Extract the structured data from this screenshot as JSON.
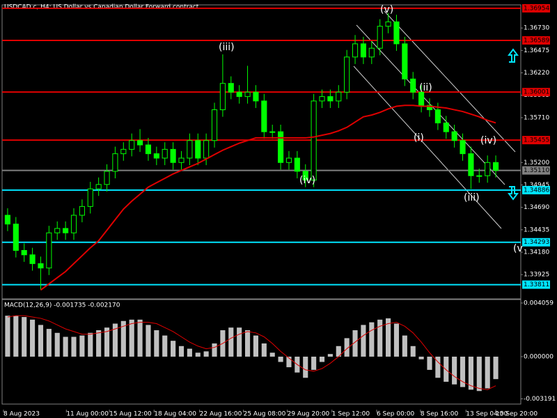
{
  "chart_data": [
    {
      "type": "candlestick",
      "title": "USDCAD.c, H4: US Dollar vs Canadian Dollar Forward contract",
      "up_color": "#00ff00",
      "down_color": "#00ff00",
      "open": [
        1.346,
        1.345,
        1.342,
        1.3415,
        1.3405,
        1.34,
        1.344,
        1.3445,
        1.344,
        1.346,
        1.347,
        1.349,
        1.3495,
        1.351,
        1.353,
        1.3535,
        1.3545,
        1.354,
        1.353,
        1.3525,
        1.3535,
        1.352,
        1.3525,
        1.3545,
        1.3525,
        1.3545,
        1.358,
        1.361,
        1.36,
        1.3595,
        1.36,
        1.359,
        1.3555,
        1.3555,
        1.352,
        1.3525,
        1.351,
        1.35,
        1.359,
        1.3595,
        1.359,
        1.36,
        1.364,
        1.3655,
        1.364,
        1.365,
        1.3675,
        1.368,
        1.3655,
        1.3615,
        1.36,
        1.3585,
        1.358,
        1.3565,
        1.3555,
        1.3545,
        1.353,
        1.3505,
        1.3505,
        1.352
      ],
      "high": [
        1.3468,
        1.3458,
        1.3428,
        1.3423,
        1.3413,
        1.3448,
        1.3453,
        1.3453,
        1.3468,
        1.3478,
        1.3498,
        1.3503,
        1.3518,
        1.3538,
        1.3543,
        1.3553,
        1.3558,
        1.3548,
        1.3538,
        1.3543,
        1.3543,
        1.3533,
        1.3553,
        1.3553,
        1.3553,
        1.3588,
        1.3643,
        1.3618,
        1.3608,
        1.363,
        1.3608,
        1.3598,
        1.3563,
        1.3563,
        1.3533,
        1.3533,
        1.3518,
        1.3598,
        1.3603,
        1.3603,
        1.3608,
        1.3648,
        1.3665,
        1.3663,
        1.3658,
        1.3683,
        1.369,
        1.3688,
        1.3663,
        1.3623,
        1.3608,
        1.3593,
        1.3588,
        1.3573,
        1.3563,
        1.3553,
        1.3538,
        1.3513,
        1.3528,
        1.3528
      ],
      "low": [
        1.3442,
        1.3412,
        1.3407,
        1.3397,
        1.3375,
        1.3392,
        1.3432,
        1.3432,
        1.3432,
        1.3452,
        1.3462,
        1.3482,
        1.3487,
        1.3502,
        1.3522,
        1.3527,
        1.3532,
        1.3522,
        1.3517,
        1.3517,
        1.3512,
        1.3512,
        1.3517,
        1.3517,
        1.3517,
        1.3537,
        1.3572,
        1.3592,
        1.3587,
        1.3587,
        1.3582,
        1.3547,
        1.3547,
        1.3512,
        1.3512,
        1.3502,
        1.3492,
        1.3492,
        1.3582,
        1.3582,
        1.3582,
        1.3592,
        1.3632,
        1.3632,
        1.3632,
        1.3642,
        1.3667,
        1.3647,
        1.3607,
        1.3592,
        1.3577,
        1.3572,
        1.3557,
        1.3547,
        1.3537,
        1.3522,
        1.349,
        1.3497,
        1.3497,
        1.3503
      ],
      "close": [
        1.345,
        1.342,
        1.3415,
        1.3405,
        1.34,
        1.344,
        1.3445,
        1.344,
        1.346,
        1.347,
        1.349,
        1.3495,
        1.351,
        1.353,
        1.3535,
        1.3545,
        1.354,
        1.353,
        1.3525,
        1.3535,
        1.352,
        1.3525,
        1.3545,
        1.3525,
        1.3545,
        1.358,
        1.361,
        1.36,
        1.3595,
        1.36,
        1.359,
        1.3555,
        1.3555,
        1.352,
        1.3525,
        1.351,
        1.35,
        1.359,
        1.3595,
        1.359,
        1.36,
        1.364,
        1.3655,
        1.364,
        1.365,
        1.3675,
        1.368,
        1.3655,
        1.3615,
        1.36,
        1.3585,
        1.358,
        1.3565,
        1.3555,
        1.3545,
        1.353,
        1.3505,
        1.3505,
        1.352,
        1.3511
      ],
      "moving_average": {
        "color": "#e00000",
        "values": [
          null,
          null,
          null,
          null,
          1.3375,
          1.3382,
          1.3389,
          1.3396,
          1.3405,
          1.3414,
          1.3423,
          1.3431,
          1.3443,
          1.3455,
          1.3467,
          1.3476,
          1.3484,
          1.3492,
          1.3497,
          1.3502,
          1.3507,
          1.3511,
          1.3515,
          1.3519,
          1.3524,
          1.3529,
          1.3534,
          1.3538,
          1.3542,
          1.3545,
          1.3548,
          1.3548,
          1.3548,
          1.3548,
          1.3548,
          1.3548,
          1.3548,
          1.3549,
          1.3551,
          1.3553,
          1.3556,
          1.356,
          1.3566,
          1.3572,
          1.3574,
          1.3577,
          1.3581,
          1.3584,
          1.3585,
          1.3585,
          1.3584,
          1.3584,
          1.3583,
          1.3582,
          1.358,
          1.3578,
          1.3575,
          1.3572,
          1.3568,
          1.3565
        ]
      },
      "levels": [
        {
          "value": 1.36954,
          "color": "#e00000"
        },
        {
          "value": 1.36589,
          "color": "#e00000"
        },
        {
          "value": 1.36001,
          "color": "#e00000"
        },
        {
          "value": 1.35455,
          "color": "#e00000"
        },
        {
          "value": 1.3511,
          "label": "1.35110",
          "color": "#808080"
        },
        {
          "value": 1.34886,
          "color": "#00e5ff"
        },
        {
          "value": 1.34293,
          "color": "#00e5ff"
        },
        {
          "value": 1.33811,
          "color": "#00e5ff"
        }
      ],
      "annotations": [
        "(v)",
        "(iii)",
        "(ii)",
        "(i)",
        "(iv)",
        "(iv)",
        "(iii)",
        "(v"
      ],
      "xlim": [
        0,
        60
      ],
      "xticks": [
        {
          "value": 0,
          "label": "8 Aug 2023"
        },
        {
          "value": 7.6,
          "label": "11 Aug 00:00"
        },
        {
          "value": 12.8,
          "label": "15 Aug 12:00"
        },
        {
          "value": 18.2,
          "label": "18 Aug 04:00"
        },
        {
          "value": 23.7,
          "label": "22 Aug 16:00"
        },
        {
          "value": 29.0,
          "label": "25 Aug 08:00"
        },
        {
          "value": 34.3,
          "label": "29 Aug 20:00"
        },
        {
          "value": 39.7,
          "label": "1 Sep 12:00"
        },
        {
          "value": 45.1,
          "label": "6 Sep 00:00"
        },
        {
          "value": 50.4,
          "label": "8 Sep 16:00"
        },
        {
          "value": 55.9,
          "label": "13 Sep 04:00"
        },
        {
          "value": 59.5,
          "label": "15 Sep 20:00"
        }
      ],
      "ylim": [
        1.33657,
        1.36985
      ],
      "yticks": [
        {
          "value": 1.3673,
          "label": "1.36730"
        },
        1.36475,
        {
          "value": 1.3622,
          "label": "1.36220"
        },
        1.35965,
        {
          "value": 1.3571,
          "label": "1.35710"
        },
        {
          "value": 1.352,
          "label": "1.35200"
        },
        1.34945,
        {
          "value": 1.3469,
          "label": "1.34690"
        },
        1.34435,
        {
          "value": 1.3418,
          "label": "1.34180"
        },
        1.33925
      ]
    },
    {
      "type": "bar",
      "title": "MACD(12,26,9) -0.001735 -0.002170",
      "color": "#c0c0c0",
      "values": [
        0.0031,
        0.0031,
        0.003,
        0.0028,
        0.0024,
        0.0021,
        0.0018,
        0.0015,
        0.0015,
        0.0016,
        0.0018,
        0.002,
        0.0022,
        0.0025,
        0.0027,
        0.0028,
        0.0028,
        0.0024,
        0.002,
        0.0016,
        0.0012,
        0.0008,
        0.0006,
        0.0003,
        0.0004,
        0.001,
        0.002,
        0.0022,
        0.0022,
        0.002,
        0.0016,
        0.001,
        0.0003,
        -0.0004,
        -0.0008,
        -0.0012,
        -0.0016,
        -0.001,
        -0.0004,
        0.0002,
        0.0008,
        0.0014,
        0.002,
        0.0024,
        0.0026,
        0.0028,
        0.0029,
        0.0025,
        0.0016,
        0.0008,
        -0.0002,
        -0.001,
        -0.0016,
        -0.0019,
        -0.0021,
        -0.0023,
        -0.0025,
        -0.0026,
        -0.0024,
        -0.0017
      ],
      "signal": {
        "color": "#e00000",
        "values": [
          0.003,
          0.0031,
          0.0031,
          0.003,
          0.0029,
          0.0027,
          0.0024,
          0.0021,
          0.0019,
          0.0017,
          0.0017,
          0.0018,
          0.0019,
          0.0021,
          0.0023,
          0.0025,
          0.0026,
          0.0026,
          0.0025,
          0.0022,
          0.0019,
          0.0015,
          0.0011,
          0.0008,
          0.0006,
          0.0007,
          0.001,
          0.0014,
          0.0017,
          0.0019,
          0.0018,
          0.0015,
          0.001,
          0.0004,
          -0.0001,
          -0.0006,
          -0.001,
          -0.0011,
          -0.0009,
          -0.0005,
          0.0,
          0.0006,
          0.0011,
          0.0016,
          0.002,
          0.0023,
          0.0025,
          0.0026,
          0.0023,
          0.0018,
          0.0011,
          0.0003,
          -0.0004,
          -0.001,
          -0.0015,
          -0.0019,
          -0.0022,
          -0.0024,
          -0.0025,
          -0.0022
        ]
      },
      "ylim": [
        -0.00401,
        0.00432
      ],
      "yticks": [
        0.004059,
        {
          "value": 0,
          "label": "0.000000"
        },
        -0.003191
      ]
    }
  ]
}
